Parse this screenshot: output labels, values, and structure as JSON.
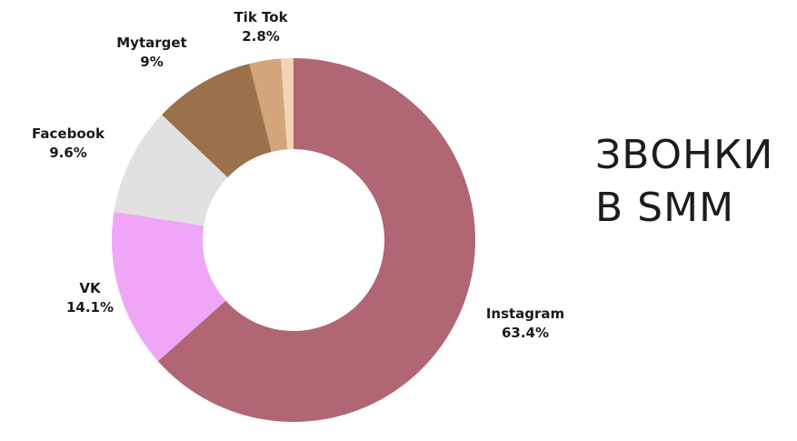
{
  "chart_data": {
    "type": "pie",
    "donut": true,
    "title_lines": [
      "ЗВОНКИ",
      "В SMM"
    ],
    "slices": [
      {
        "label": "Instagram",
        "value": 63.4,
        "value_label": "63.4%",
        "color": "#b06673"
      },
      {
        "label": "VK",
        "value": 14.1,
        "value_label": "14.1%",
        "color": "#f0a6f7"
      },
      {
        "label": "Facebook",
        "value": 9.6,
        "value_label": "9.6%",
        "color": "#e1e1e1"
      },
      {
        "label": "Mytarget",
        "value": 9.0,
        "value_label": "9%",
        "color": "#9a714b"
      },
      {
        "label": "Tik Tok",
        "value": 2.8,
        "value_label": "2.8%",
        "color": "#d2a57a"
      },
      {
        "label": "",
        "value": 1.1,
        "value_label": "",
        "color": "#f6d3b8"
      }
    ],
    "start_angle_deg": 0,
    "direction": "clockwise"
  }
}
